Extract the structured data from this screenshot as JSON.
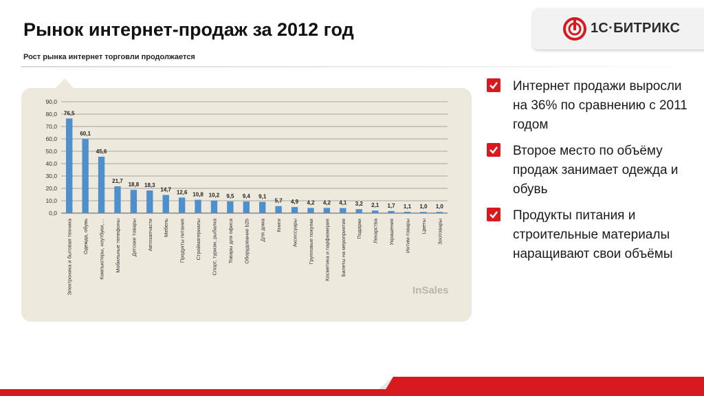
{
  "header": {
    "title": "Рынок интернет-продаж за 2012 год",
    "subtitle": "Рост рынка интернет торговли продолжается"
  },
  "logo": {
    "text": "1С·БИТРИКС",
    "accent": "#d71920"
  },
  "watermark": "InSales",
  "bullets": [
    {
      "icon": "checkbox-icon",
      "text": "Интернет продажи выросли на 36% по сравнению с 2011 годом"
    },
    {
      "icon": "checkbox-icon",
      "text": "Второе место по объёму продаж занимает одежда и обувь"
    },
    {
      "icon": "checkbox-icon",
      "text": "Продукты питания и строительные материалы наращивают свои объёмы"
    }
  ],
  "colors": {
    "accent": "#d71920",
    "bar": "#4f8fcb",
    "panel": "#ede9dd"
  },
  "chart_data": {
    "type": "bar",
    "ylim": [
      0,
      90
    ],
    "yticks": [
      "0,0",
      "10,0",
      "20,0",
      "30,0",
      "40,0",
      "50,0",
      "60,0",
      "70,0",
      "80,0",
      "90,0"
    ],
    "grid": true,
    "categories": [
      "Электроника и бытовая техника",
      "Одежда, обувь",
      "Компьютеры, ноутбуки,…",
      "Мобильные телефоны",
      "Детские товары",
      "Автозапчасти",
      "Мебель",
      "Продукты питания",
      "Стройматериалы",
      "Спорт, туризм, рыбалка",
      "Товары для офиса",
      "Оборудование b2b",
      "Для дома",
      "Книги",
      "Аксессуары",
      "Групповые покупки",
      "Косметика и парфюмерия",
      "Билеты на мероприятия",
      "Подарки",
      "Лекарства",
      "Украшения",
      "Интим-товары",
      "Цветы",
      "Зоотовары"
    ],
    "values": [
      76.5,
      60.1,
      45.6,
      21.7,
      18.8,
      18.3,
      14.7,
      12.6,
      10.8,
      10.2,
      9.5,
      9.4,
      9.1,
      5.7,
      4.9,
      4.2,
      4.2,
      4.1,
      3.2,
      2.1,
      1.7,
      1.1,
      1.0,
      1.0
    ],
    "labels": [
      "76,5",
      "60,1",
      "45,6",
      "21,7",
      "18,8",
      "18,3",
      "14,7",
      "12,6",
      "10,8",
      "10,2",
      "9,5",
      "9,4",
      "9,1",
      "5,7",
      "4,9",
      "4,2",
      "4,2",
      "4,1",
      "3,2",
      "2,1",
      "1,7",
      "1,1",
      "1,0",
      "1,0"
    ]
  }
}
